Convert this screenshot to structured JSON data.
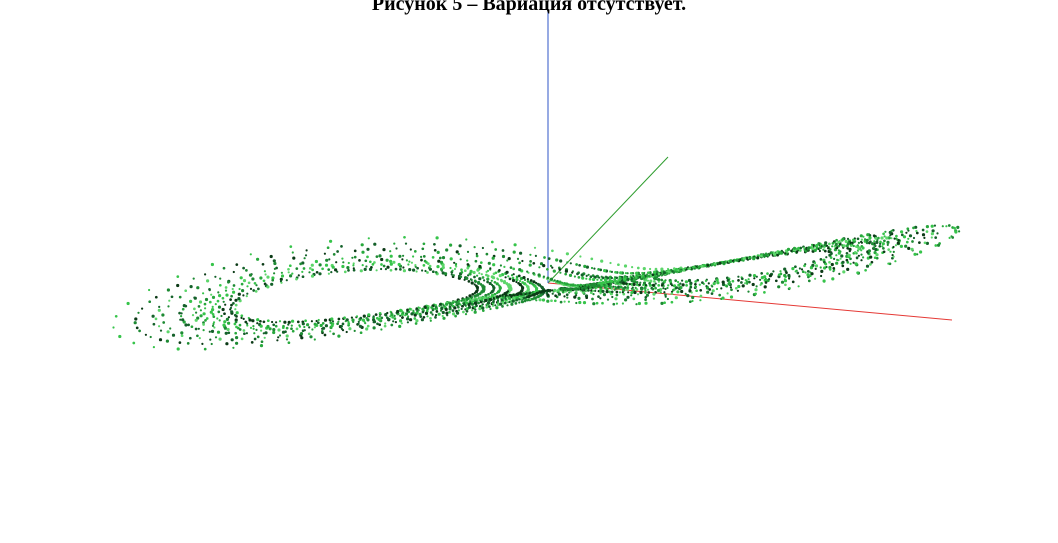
{
  "figure": {
    "caption": "Рисунок 5 – Вариация отсутствует."
  },
  "scene": {
    "background": "#ffffff",
    "point_colors": [
      "#0b3a16",
      "#14612a",
      "#1d8a33",
      "#27a83c",
      "#36c44a",
      "#5cd66a"
    ],
    "axis_colors": {
      "x": "#e53935",
      "y": "#2e9d2e",
      "z": "#2f55c7"
    }
  }
}
